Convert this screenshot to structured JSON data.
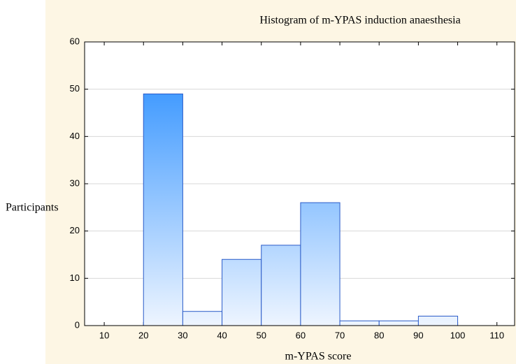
{
  "chart_data": {
    "type": "histogram",
    "title": "Histogram of m-YPAS induction anaesthesia",
    "x_label": "m-YPAS score",
    "y_label": "Participants",
    "bins": [
      20,
      30,
      40,
      50,
      60,
      70,
      80,
      90,
      100
    ],
    "values": [
      49,
      3,
      14,
      17,
      26,
      1,
      1,
      2
    ],
    "color": "#1e88ff",
    "edge_color": "#2a5bc8",
    "xlim": [
      5,
      114.5
    ],
    "xticks": [
      10,
      20,
      30,
      40,
      50,
      60,
      70,
      80,
      90,
      100,
      110
    ],
    "ylim": [
      0,
      60
    ],
    "yticks": [
      0,
      10,
      20,
      30,
      40,
      50,
      60
    ],
    "grid": true
  }
}
